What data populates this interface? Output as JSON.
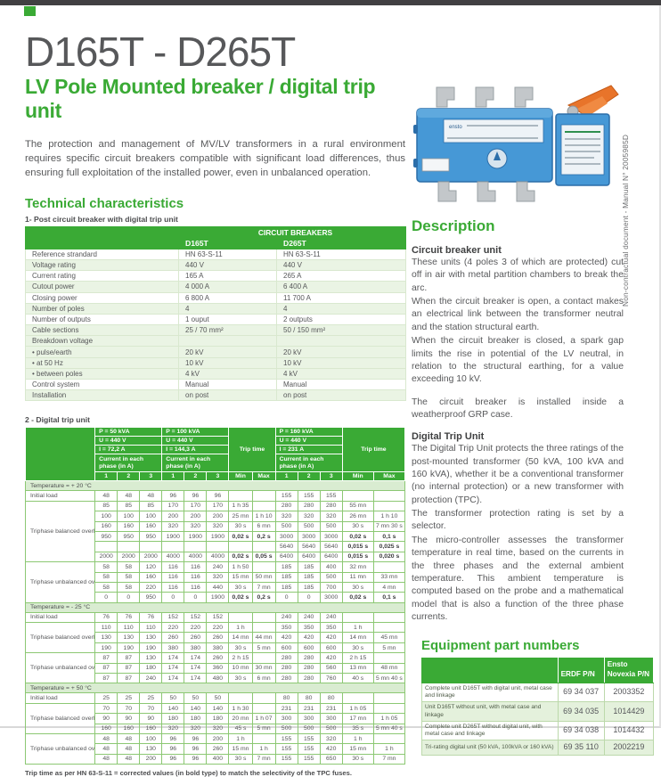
{
  "header": {
    "title": "D165T - D265T",
    "subtitle": "LV Pole Mounted breaker / digital trip unit",
    "intro": "The protection and management of MV/LV transformers in a rural environment requires specific circuit breakers compatible with significant load differences, thus ensuring full exploitation of the installed power, even in unbalanced operation."
  },
  "side_note": "Non-contractual document - Manual N° 2005985D",
  "technical": {
    "heading": "Technical characteristics",
    "table1_caption": "1- Post circuit breaker with digital trip unit",
    "table2_caption": "2 - Digital trip unit",
    "trip_note": "Trip time as per HN 63-S-11 = corrected values (in bold type) to match the selectivity of the TPC fuses."
  },
  "table1": {
    "group_header": "CIRCUIT BREAKERS",
    "columns": [
      "D165T",
      "D265T"
    ],
    "rows": [
      {
        "label": "Reference strandard",
        "v1": "HN 63-S-11",
        "v2": "HN 63-S-11"
      },
      {
        "label": "Voltage rating",
        "v1": "440 V",
        "v2": "440 V"
      },
      {
        "label": "Current rating",
        "v1": "165 A",
        "v2": "265 A"
      },
      {
        "label": "Cutout power",
        "v1": "4 000 A",
        "v2": "6 400 A"
      },
      {
        "label": "Closing power",
        "v1": "6 800 A",
        "v2": "11 700 A"
      },
      {
        "label": "Number of poles",
        "v1": "4",
        "v2": "4"
      },
      {
        "label": "Number of outputs",
        "v1": "1 ouput",
        "v2": "2 outputs"
      },
      {
        "label": "Cable sections",
        "v1": "25 / 70 mm²",
        "v2": "50 / 150 mm²"
      },
      {
        "label": "Breakdown voltage",
        "v1": "",
        "v2": ""
      },
      {
        "label": "• pulse/earth",
        "v1": "20 kV",
        "v2": "20 kV"
      },
      {
        "label": "• at 50 Hz",
        "v1": "10 kV",
        "v2": "10 kV"
      },
      {
        "label": "• between poles",
        "v1": "4 kV",
        "v2": "4 kV"
      },
      {
        "label": "Control system",
        "v1": "Manual",
        "v2": "Manual"
      },
      {
        "label": "Installation",
        "v1": "on post",
        "v2": "on post"
      }
    ]
  },
  "trip_table": {
    "groups": [
      {
        "p": "P = 50 kVA",
        "u": "U = 440 V",
        "i": "I = 72,2 A",
        "phase_label": "Current in each phase (in A)",
        "cols": [
          "1",
          "2",
          "3"
        ]
      },
      {
        "p": "P = 100 kVA",
        "u": "U = 440 V",
        "i": "I = 144,3 A",
        "phase_label": "Current in each phase (in A)",
        "cols": [
          "1",
          "2",
          "3"
        ]
      },
      {
        "p": "P = 160 kVA",
        "u": "U = 440 V",
        "i": "I = 231 A",
        "phase_label": "Current in each phase (in A)",
        "cols": [
          "1",
          "2",
          "3"
        ]
      }
    ],
    "trip_time_label": "Trip time",
    "min_label": "Min",
    "max_label": "Max",
    "sections": [
      {
        "title": "Temperature = + 20 °C",
        "blocks": [
          {
            "label": "Initial load",
            "rows": [
              [
                "48",
                "48",
                "48",
                "96",
                "96",
                "96",
                "",
                "",
                "155",
                "155",
                "155",
                "",
                ""
              ]
            ]
          },
          {
            "label": "Triphase balanced overload",
            "rows": [
              [
                "85",
                "85",
                "85",
                "170",
                "170",
                "170",
                "1 h 35",
                "",
                "280",
                "280",
                "280",
                "55 mn",
                ""
              ],
              [
                "100",
                "100",
                "100",
                "200",
                "200",
                "200",
                "25 mn",
                "1 h 10",
                "320",
                "320",
                "320",
                "26 mn",
                "1 h 10"
              ],
              [
                "160",
                "160",
                "160",
                "320",
                "320",
                "320",
                "30 s",
                "6 mn",
                "500",
                "500",
                "500",
                "30 s",
                "7 mn 30 s"
              ],
              [
                "950",
                "950",
                "950",
                "1900",
                "1900",
                "1900",
                {
                  "v": "0,02 s"
                },
                {
                  "v": "0,2 s"
                },
                "3000",
                "3000",
                "3000",
                {
                  "v": "0,02 s"
                },
                {
                  "v": "0,1 s"
                }
              ],
              [
                "",
                "",
                "",
                "",
                "",
                "",
                "",
                "",
                "5640",
                "5640",
                "5640",
                {
                  "v": "0,015 s"
                },
                {
                  "v": "0,025 s"
                }
              ],
              [
                "2000",
                "2000",
                "2000",
                "4000",
                "4000",
                "4000",
                {
                  "v": "0,02 s"
                },
                {
                  "v": "0,05 s"
                },
                "6400",
                "6400",
                "6400",
                {
                  "v": "0,015 s"
                },
                {
                  "v": "0,020 s"
                }
              ]
            ]
          },
          {
            "label": "Triphase unbalanced overload",
            "rows": [
              [
                "58",
                "58",
                "120",
                "116",
                "116",
                "240",
                "1 h 50",
                "",
                "185",
                "185",
                "400",
                "32 mn",
                ""
              ],
              [
                "58",
                "58",
                "160",
                "116",
                "116",
                "320",
                "15 mn",
                "50 mn",
                "185",
                "185",
                "500",
                "11 mn",
                "33 mn"
              ],
              [
                "58",
                "58",
                "220",
                "116",
                "116",
                "440",
                "30 s",
                "7 mn",
                "185",
                "185",
                "700",
                "30 s",
                "4 mn"
              ],
              [
                "0",
                "0",
                "950",
                "0",
                "0",
                "1900",
                {
                  "v": "0,02 s"
                },
                {
                  "v": "0,2 s"
                },
                "0",
                "0",
                "3000",
                {
                  "v": "0,02 s"
                },
                {
                  "v": "0,1 s"
                }
              ]
            ]
          }
        ]
      },
      {
        "title": "Temperature = - 25 °C",
        "blocks": [
          {
            "label": "Initial load",
            "rows": [
              [
                "76",
                "76",
                "76",
                "152",
                "152",
                "152",
                "",
                "",
                "240",
                "240",
                "240",
                "",
                ""
              ]
            ]
          },
          {
            "label": "Triphase balanced overload",
            "rows": [
              [
                "110",
                "110",
                "110",
                "220",
                "220",
                "220",
                "1 h",
                "",
                "350",
                "350",
                "350",
                "1 h",
                ""
              ],
              [
                "130",
                "130",
                "130",
                "260",
                "260",
                "260",
                "14 mn",
                "44 mn",
                "420",
                "420",
                "420",
                "14 mn",
                "45 mn"
              ],
              [
                "190",
                "190",
                "190",
                "380",
                "380",
                "380",
                "30 s",
                "5 mn",
                "600",
                "600",
                "600",
                "30 s",
                "5 mn"
              ]
            ]
          },
          {
            "label": "Triphase unbalanced overload",
            "rows": [
              [
                "87",
                "87",
                "130",
                "174",
                "174",
                "260",
                "2 h 15",
                "",
                "280",
                "280",
                "420",
                "2 h 15",
                ""
              ],
              [
                "87",
                "87",
                "180",
                "174",
                "174",
                "360",
                "10 mn",
                "30 mn",
                "280",
                "280",
                "560",
                "13 mn",
                "48 mn"
              ],
              [
                "87",
                "87",
                "240",
                "174",
                "174",
                "480",
                "30 s",
                "6 mn",
                "280",
                "280",
                "760",
                "40 s",
                "5 mn 40 s"
              ]
            ]
          }
        ]
      },
      {
        "title": "Temperature = + 50 °C",
        "blocks": [
          {
            "label": "Initial load",
            "rows": [
              [
                "25",
                "25",
                "25",
                "50",
                "50",
                "50",
                "",
                "",
                "80",
                "80",
                "80",
                "",
                ""
              ]
            ]
          },
          {
            "label": "Triphase balanced overload",
            "rows": [
              [
                "70",
                "70",
                "70",
                "140",
                "140",
                "140",
                "1 h 30",
                "",
                "231",
                "231",
                "231",
                "1 h 05",
                ""
              ],
              [
                "90",
                "90",
                "90",
                "180",
                "180",
                "180",
                "20 mn",
                "1 h 07",
                "300",
                "300",
                "300",
                "17 mn",
                "1 h 05"
              ],
              [
                "160",
                "160",
                "160",
                "320",
                "320",
                "320",
                "45 s",
                "5 mn",
                "500",
                "500",
                "500",
                "35 s",
                "5 mn 40 s"
              ]
            ]
          },
          {
            "label": "Triphase unbalanced overload",
            "rows": [
              [
                "48",
                "48",
                "100",
                "96",
                "96",
                "200",
                "1 h",
                "",
                "155",
                "155",
                "320",
                "1 h",
                ""
              ],
              [
                "48",
                "48",
                "130",
                "96",
                "96",
                "260",
                "15 mn",
                "1 h",
                "155",
                "155",
                "420",
                "15 mn",
                "1 h"
              ],
              [
                "48",
                "48",
                "200",
                "96",
                "96",
                "400",
                "30 s",
                "7 mn",
                "155",
                "155",
                "650",
                "30 s",
                "7 mn"
              ]
            ]
          }
        ]
      }
    ]
  },
  "description": {
    "heading": "Description",
    "sections": [
      {
        "title": "Circuit breaker unit",
        "paragraphs": [
          "These units (4 poles 3 of which are protected) cut off in air with metal partition chambers to break the arc.",
          "When the circuit breaker is open, a contact makes an electrical link between the transformer neutral and the station structural earth.",
          "When the circuit breaker is closed, a spark gap limits the rise in potential of the LV neutral, in relation to the structural earthing, for a value exceeding 10 kV.",
          "The circuit breaker is installed inside a weatherproof GRP case."
        ]
      },
      {
        "title": "Digital Trip Unit",
        "paragraphs": [
          "The Digital Trip Unit protects the three ratings of the post-mounted transformer (50 kVA, 100 kVA and 160 kVA), whether it be a conventional transformer (no internal protection) or a new transformer with protection (TPC).",
          "The transformer protection rating is set by a selector.",
          "The micro-controller assesses the transformer temperature in real time, based on the currents in the three phases and the external ambient temperature. This ambient temperature is computed based on the probe and a mathematical model that is also a function of the three phase currents."
        ]
      }
    ]
  },
  "equipment": {
    "heading": "Equipment part numbers",
    "col_erdf": "ERDF P/N",
    "col_ensto": "Ensto Novexia P/N",
    "rows": [
      {
        "desc": "Complete unit D165T with digital unit, metal case and linkage",
        "erdf": "69 34 037",
        "ensto": "2003352"
      },
      {
        "desc": "Unit D165T without unit, with metal case and linkage",
        "erdf": "69 34 035",
        "ensto": "1014429"
      },
      {
        "desc": "Complete unit D265T without digital unit, with metal case and linkage",
        "erdf": "69 34 038",
        "ensto": "1014432"
      },
      {
        "desc": "Tri-rating digital unit (50 kVA, 100kVA or 160 kVA)",
        "erdf": "69 35 110",
        "ensto": "2002219"
      }
    ]
  }
}
